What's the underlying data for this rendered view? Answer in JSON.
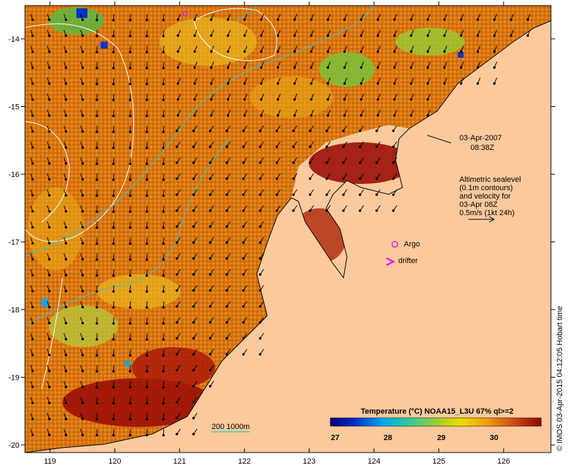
{
  "map": {
    "timestamp_date": "03-Apr-2007",
    "timestamp_time": "08:38Z",
    "legend_lines": [
      "Altimetric sealevel",
      "(0.1m contours)",
      "and velocity for",
      "03-Apr 08Z",
      "0.5m/s (1kt 24h)"
    ],
    "argo_label": "Argo",
    "drifter_label": "drifter",
    "depth_label": "200  1000m",
    "credit": "© IMOS 03-Apr-2015 04:12:05 Hobart time",
    "lon_ticks": [
      "119",
      "120",
      "121",
      "122",
      "123",
      "124",
      "125",
      "126"
    ],
    "lat_ticks": [
      "-14",
      "-15",
      "-16",
      "-17",
      "-18",
      "-19",
      "-20"
    ]
  },
  "colorbar": {
    "title": "Temperature (°C) NOAA15_L3U 67% ql>=2",
    "ticks": [
      "27",
      "28",
      "29",
      "30"
    ]
  },
  "colors": {
    "land": "#fbc99c",
    "sst_warm": "#d9740f",
    "sst_hot": "#9a0f08",
    "sst_cool": "#7ac23a",
    "contour": "#ffffff",
    "isobath": "#33cccc",
    "argo": "#dd22dd"
  }
}
